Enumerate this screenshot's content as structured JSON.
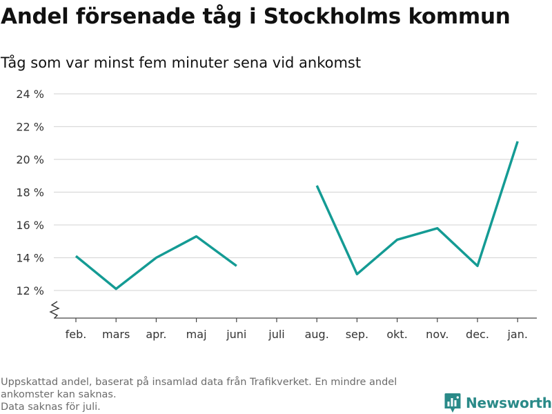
{
  "chart_data": {
    "type": "line",
    "title": "Andel försenade tåg i Stockholms kommun",
    "subtitle": "Tåg som var minst fem minuter sena vid ankomst",
    "categories": [
      "feb.",
      "mars",
      "apr.",
      "maj",
      "juni",
      "juli",
      "aug.",
      "sep.",
      "okt.",
      "nov.",
      "dec.",
      "jan."
    ],
    "series": [
      {
        "values": [
          14.1,
          12.1,
          14.0,
          15.3,
          13.5,
          null,
          18.4,
          13.0,
          15.1,
          15.8,
          13.5,
          21.1
        ]
      }
    ],
    "ylim": [
      12,
      24
    ],
    "yticks": [
      12,
      14,
      16,
      18,
      20,
      22,
      24
    ],
    "ytick_suffix": " %",
    "axis_break": true,
    "grid": true,
    "line_color": "#149b94"
  },
  "footer": {
    "note_line1": "Uppskattad andel, baserat på insamlad data från Trafikverket. En mindre andel",
    "note_line2": "ankomster kan saknas.",
    "note_line3": "Data saknas för juli."
  },
  "brand": {
    "name": "Newsworthy",
    "logo_icon": "newsworthy-logo-icon",
    "color": "#2a8a88"
  }
}
